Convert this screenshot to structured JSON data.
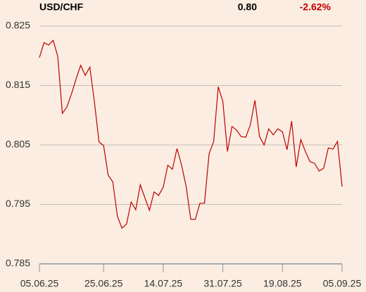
{
  "header": {
    "symbol": "USD/CHF",
    "last": "0.80",
    "change": "-2.62%"
  },
  "chart_data": {
    "type": "line",
    "categories": [
      "05.06.25",
      null,
      null,
      null,
      null,
      null,
      null,
      null,
      null,
      null,
      null,
      null,
      null,
      null,
      "25.06.25",
      null,
      null,
      null,
      null,
      null,
      null,
      null,
      null,
      null,
      null,
      null,
      null,
      "14.07.25",
      null,
      null,
      null,
      null,
      null,
      null,
      null,
      null,
      null,
      null,
      null,
      null,
      "31.07.25",
      null,
      null,
      null,
      null,
      null,
      null,
      null,
      null,
      null,
      null,
      null,
      null,
      "19.08.25",
      null,
      null,
      null,
      null,
      null,
      null,
      null,
      null,
      null,
      null,
      null,
      null,
      "05.09.25"
    ],
    "series": [
      {
        "name": "USD/CHF",
        "color": "#c00000",
        "values": [
          0.8197,
          0.8222,
          0.8218,
          0.8226,
          0.8199,
          0.8103,
          0.8114,
          0.8136,
          0.8161,
          0.8184,
          0.8167,
          0.8181,
          0.8122,
          0.8055,
          0.8049,
          0.7999,
          0.7988,
          0.793,
          0.791,
          0.7917,
          0.7954,
          0.7941,
          0.7983,
          0.7961,
          0.794,
          0.7971,
          0.7965,
          0.7979,
          0.8016,
          0.8009,
          0.8044,
          0.8016,
          0.798,
          0.7925,
          0.7925,
          0.7952,
          0.7952,
          0.8035,
          0.8056,
          0.8148,
          0.8123,
          0.8039,
          0.8081,
          0.8075,
          0.8064,
          0.8063,
          0.8084,
          0.8125,
          0.8064,
          0.805,
          0.8077,
          0.8067,
          0.8077,
          0.8072,
          0.8042,
          0.809,
          0.8013,
          0.8059,
          0.8039,
          0.8022,
          0.8019,
          0.8006,
          0.8011,
          0.8045,
          0.8043,
          0.8056,
          0.798
        ]
      }
    ],
    "ylim": [
      0.785,
      0.825
    ],
    "yticks": [
      0.785,
      0.795,
      0.805,
      0.815,
      0.825
    ],
    "grid": true
  }
}
